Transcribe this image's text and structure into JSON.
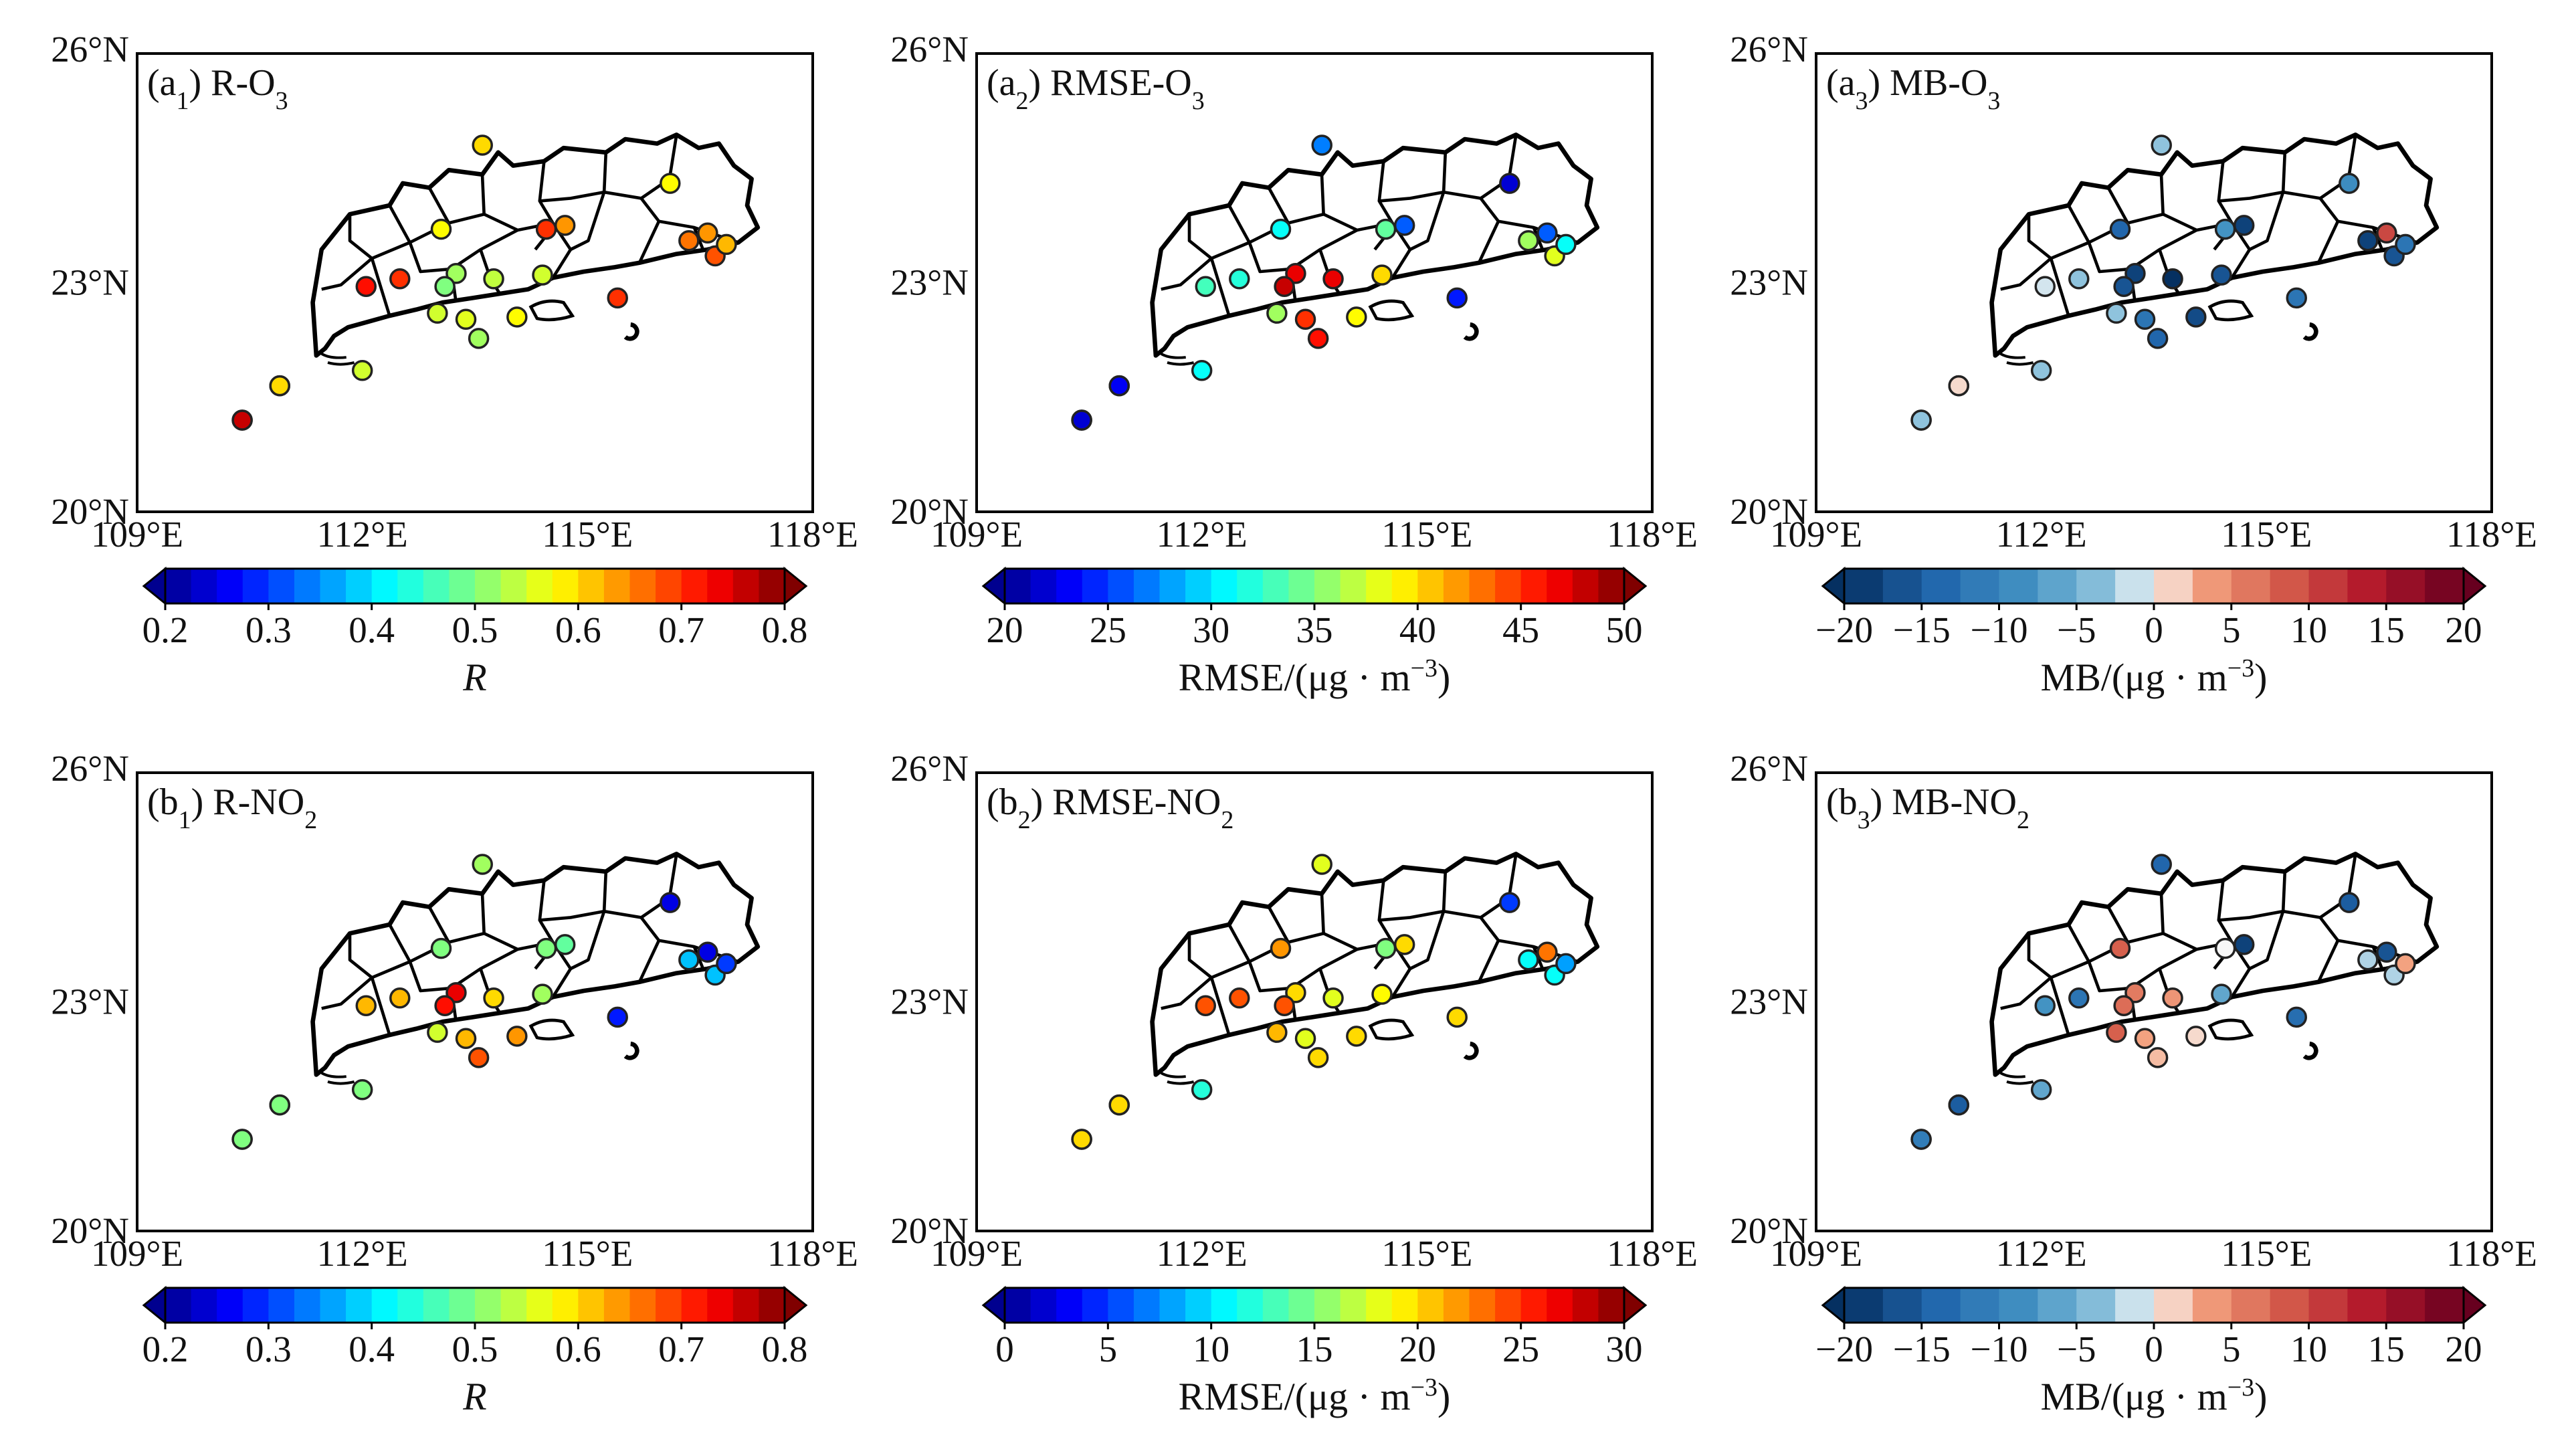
{
  "lon_ticks": [
    "109°E",
    "112°E",
    "115°E",
    "118°E"
  ],
  "lat_ticks": [
    "26°N",
    "23°N",
    "20°N"
  ],
  "panels": [
    {
      "id": "a1",
      "label_prefix": "(a",
      "label_index": "1",
      "label_main": ") R-O",
      "label_species_sub": "3",
      "colormap": "jet",
      "range": [
        0.2,
        0.8
      ],
      "ticks": [
        "0.2",
        "0.3",
        "0.4",
        "0.5",
        "0.6",
        "0.7",
        "0.8"
      ],
      "colorbar_title": "R",
      "colorbar_title_italic": true,
      "values": [
        0.62,
        0.68,
        0.55,
        0.6,
        0.72,
        0.76,
        0.7,
        0.58,
        0.55,
        0.52,
        0.5,
        0.56,
        0.52,
        0.54,
        0.58,
        0.55,
        0.6,
        0.64,
        0.58,
        0.7,
        0.64,
        0.66,
        0.68,
        0.62,
        0.7
      ]
    },
    {
      "id": "a2",
      "label_prefix": "(a",
      "label_index": "2",
      "label_main": ") RMSE-O",
      "label_species_sub": "3",
      "colormap": "jet",
      "range": [
        20,
        50
      ],
      "ticks": [
        "20",
        "25",
        "30",
        "35",
        "40",
        "45",
        "50"
      ],
      "colorbar_title": "RMSE/(μg · m",
      "colorbar_title_sup": "−3",
      "colorbar_title_end": ")",
      "colorbar_title_italic": false,
      "values": [
        31,
        29,
        31,
        23,
        33,
        22,
        32,
        31,
        36,
        47,
        48,
        45,
        46,
        47,
        39,
        40,
        27,
        26,
        22,
        24,
        26,
        36,
        38,
        31,
        34
      ]
    },
    {
      "id": "a3",
      "label_prefix": "(a",
      "label_index": "3",
      "label_main": ") MB-O",
      "label_species_sub": "3",
      "colormap": "diverging",
      "range": [
        -20,
        20
      ],
      "ticks": [
        "−20",
        "−15",
        "−10",
        "−5",
        "0",
        "5",
        "10",
        "15",
        "20"
      ],
      "colorbar_title": "MB/(μg · m",
      "colorbar_title_sup": "−3",
      "colorbar_title_end": ")",
      "colorbar_title_italic": false,
      "values": [
        -1,
        8,
        -3,
        1,
        -1,
        -3,
        -3,
        -14,
        -3,
        -18,
        -16,
        -12,
        -14,
        -20,
        -17,
        -16,
        -3,
        -18,
        -9,
        -12,
        10,
        -18,
        -16,
        -12,
        -8
      ]
    },
    {
      "id": "b1",
      "label_prefix": "(b",
      "label_index": "1",
      "label_main": ") R-NO",
      "label_species_sub": "2",
      "colormap": "jet",
      "range": [
        0.2,
        0.8
      ],
      "ticks": [
        "0.2",
        "0.3",
        "0.4",
        "0.5",
        "0.6",
        "0.7",
        "0.8"
      ],
      "colorbar_title": "R",
      "colorbar_title_italic": true,
      "values": [
        0.6,
        0.66,
        0.5,
        0.5,
        0.62,
        0.5,
        0.62,
        0.5,
        0.55,
        0.74,
        0.72,
        0.62,
        0.68,
        0.6,
        0.64,
        0.52,
        0.52,
        0.48,
        0.25,
        0.28,
        0.25,
        0.38,
        0.38,
        0.3,
        0.5
      ]
    },
    {
      "id": "b2",
      "label_prefix": "(b",
      "label_index": "2",
      "label_main": ") RMSE-NO",
      "label_species_sub": "2",
      "colormap": "jet",
      "range": [
        0,
        30
      ],
      "ticks": [
        "0",
        "5",
        "10",
        "15",
        "20",
        "25",
        "30"
      ],
      "colorbar_title": "RMSE/(μg · m",
      "colorbar_title_sup": "−3",
      "colorbar_title_end": ")",
      "colorbar_title_italic": false,
      "values": [
        8,
        5,
        12,
        20,
        24,
        20,
        24,
        22,
        21,
        20,
        24,
        18,
        20,
        18,
        20,
        19,
        18,
        20,
        5,
        20,
        23,
        11,
        11,
        8,
        15
      ]
    },
    {
      "id": "b3",
      "label_prefix": "(b",
      "label_index": "3",
      "label_main": ") MB-NO",
      "label_species_sub": "2",
      "colormap": "diverging",
      "range": [
        -20,
        20
      ],
      "ticks": [
        "−20",
        "−15",
        "−10",
        "−5",
        "0",
        "5",
        "10",
        "15",
        "20"
      ],
      "colorbar_title": "MB/(μg · m",
      "colorbar_title_sup": "−3",
      "colorbar_title_end": ")",
      "colorbar_title_italic": false,
      "values": [
        -2,
        -8,
        -6,
        -15,
        -8,
        -11,
        -12,
        8,
        8,
        6,
        7,
        3,
        2,
        4,
        1,
        -6,
        -14,
        -18,
        -15,
        -13,
        -16,
        -2,
        -2,
        3,
        0
      ]
    }
  ],
  "stations": [
    {
      "lon": 110.4,
      "lat": 21.2
    },
    {
      "lon": 110.9,
      "lat": 21.65
    },
    {
      "lon": 112.0,
      "lat": 21.85
    },
    {
      "lon": 110.9,
      "lat": 21.65
    },
    {
      "lon": 112.05,
      "lat": 22.95
    },
    {
      "lon": 110.4,
      "lat": 21.2
    },
    {
      "lon": 112.5,
      "lat": 23.05
    },
    {
      "lon": 113.05,
      "lat": 23.7
    },
    {
      "lon": 113.0,
      "lat": 22.6
    },
    {
      "lon": 113.25,
      "lat": 23.12
    },
    {
      "lon": 113.1,
      "lat": 22.95
    },
    {
      "lon": 113.38,
      "lat": 22.52
    },
    {
      "lon": 113.55,
      "lat": 22.27
    },
    {
      "lon": 113.75,
      "lat": 23.05
    },
    {
      "lon": 114.06,
      "lat": 22.55
    },
    {
      "lon": 114.4,
      "lat": 23.1
    },
    {
      "lon": 113.6,
      "lat": 24.8
    },
    {
      "lon": 114.7,
      "lat": 23.75
    },
    {
      "lon": 116.1,
      "lat": 24.3
    },
    {
      "lon": 115.4,
      "lat": 22.8
    },
    {
      "lon": 116.6,
      "lat": 23.65
    },
    {
      "lon": 116.35,
      "lat": 23.55
    },
    {
      "lon": 116.7,
      "lat": 23.35
    },
    {
      "lon": 116.85,
      "lat": 23.5
    },
    {
      "lon": 114.45,
      "lat": 23.7
    }
  ]
}
